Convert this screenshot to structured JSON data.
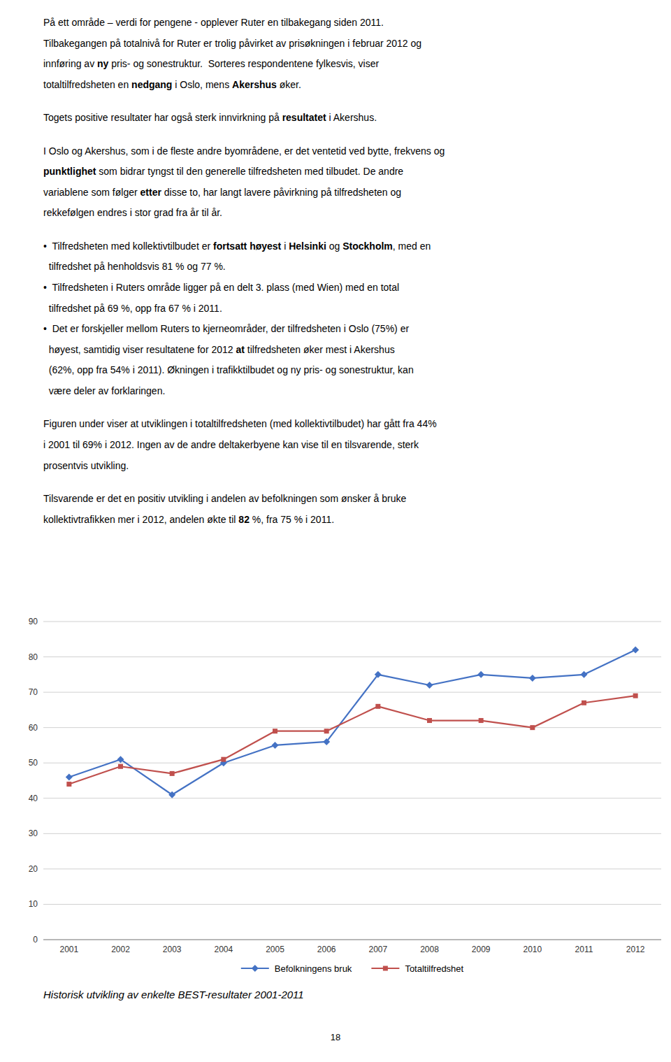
{
  "chart_data": {
    "type": "line",
    "caption": "Historisk utvikling av enkelte BEST-resultater 2001-2011",
    "x": [
      2001,
      2002,
      2003,
      2004,
      2005,
      2006,
      2007,
      2008,
      2009,
      2010,
      2011,
      2012
    ],
    "series": [
      {
        "name": "Befolkningens bruk",
        "color": "#4472C4",
        "marker": "diamond",
        "values": [
          46,
          51,
          41,
          50,
          55,
          56,
          75,
          72,
          75,
          74,
          75,
          82
        ]
      },
      {
        "name": "Totaltilfredshet",
        "color": "#C0504D",
        "marker": "square",
        "values": [
          44,
          49,
          47,
          51,
          59,
          59,
          66,
          62,
          62,
          60,
          67,
          69
        ]
      }
    ],
    "xlim": [
      2000.5,
      2012.5
    ],
    "xticks": [
      2001,
      2002,
      2003,
      2004,
      2005,
      2006,
      2007,
      2008,
      2009,
      2010,
      2011,
      2012
    ],
    "ylim": [
      0,
      90
    ],
    "yticks": [
      0,
      10,
      20,
      30,
      40,
      50,
      60,
      70,
      80,
      90
    ],
    "grid": true,
    "legend": "bottom"
  },
  "page_number": "18",
  "body": [
    [
      {
        "text": "På ett område – verdi for pengene - opplever Ruter en tilbakegang siden 2011.",
        "bold": false
      }
    ],
    [
      {
        "text": "Tilbakegangen på totalnivå for Ruter er trolig påvirket av prisøkningen i februar 2012 og",
        "bold": false
      }
    ],
    [
      {
        "text": "innføring av ",
        "bold": false
      },
      {
        "text": "ny",
        "bold": true
      },
      {
        "text": " pris- og sonestruktur.  Sorteres respondentene fylkesvis, viser",
        "bold": false
      }
    ],
    [
      {
        "text": "totaltilfredsheten en ",
        "bold": false
      },
      {
        "text": "nedgang",
        "bold": true
      },
      {
        "text": " i Oslo, mens ",
        "bold": false
      },
      {
        "text": "Akershus",
        "bold": true
      },
      {
        "text": " øker.",
        "bold": false
      }
    ],
    null,
    [
      {
        "text": "Togets positive resultater har også sterk innvirkning på ",
        "bold": false
      },
      {
        "text": "resultatet",
        "bold": true
      },
      {
        "text": " i Akershus.",
        "bold": false
      }
    ],
    null,
    [
      {
        "text": "I Oslo og Akershus, som i de fleste andre byområdene, er det ventetid ved bytte, frekvens og",
        "bold": false
      }
    ],
    [
      {
        "text": "punktlighet",
        "bold": true
      },
      {
        "text": " som bidrar tyngst til den generelle tilfredsheten med tilbudet. De andre",
        "bold": false
      }
    ],
    [
      {
        "text": "variablene som følger ",
        "bold": false
      },
      {
        "text": "etter",
        "bold": true
      },
      {
        "text": " disse to, har langt lavere påvirkning på tilfredsheten og",
        "bold": false
      }
    ],
    [
      {
        "text": "rekkefølgen endres i stor grad fra år til år.",
        "bold": false
      }
    ],
    null,
    [
      {
        "text": "•",
        "bold": false
      },
      {
        "text": "  Tilfredsheten med kollektivtilbudet er ",
        "bold": false
      },
      {
        "text": "fortsatt høyest",
        "bold": true
      },
      {
        "text": " i ",
        "bold": false
      },
      {
        "text": "Helsinki",
        "bold": true
      },
      {
        "text": " og ",
        "bold": false
      },
      {
        "text": "Stockholm",
        "bold": true
      },
      {
        "text": ", med en",
        "bold": false
      }
    ],
    [
      {
        "text": "  tilfredshet på henholdsvis 81 % og 77 %.",
        "bold": false
      }
    ],
    [
      {
        "text": "•",
        "bold": false
      },
      {
        "text": "  Tilfredsheten i Ruters område ligger på en delt 3. plass (med Wien) med en total",
        "bold": false
      }
    ],
    [
      {
        "text": "  tilfredshet på 69 %, opp fra 67 % i 2011.",
        "bold": false
      }
    ],
    [
      {
        "text": "•",
        "bold": false
      },
      {
        "text": "  Det er forskjeller mellom Ruters to kjerneområder, der tilfredsheten i Oslo (75%) er",
        "bold": false
      }
    ],
    [
      {
        "text": "  høyest, samtidig viser resultatene for 2012 ",
        "bold": false
      },
      {
        "text": "at",
        "bold": true
      },
      {
        "text": " tilfredsheten øker mest i Akershus",
        "bold": false
      }
    ],
    [
      {
        "text": "  (62%, opp fra 54% i 2011). Økningen i trafikktilbudet og ny pris- og sonestruktur, kan",
        "bold": false
      }
    ],
    [
      {
        "text": "  være deler av forklaringen.",
        "bold": false
      }
    ],
    null,
    [
      {
        "text": "Figuren under viser at utviklingen i totaltilfredsheten (med kollektivtilbudet) har gått fra 44%",
        "bold": false
      }
    ],
    [
      {
        "text": "i 2001 til 69% i 2012. Ingen av de andre deltakerbyene kan vise til en tilsvarende, sterk",
        "bold": false
      }
    ],
    [
      {
        "text": "prosentvis utvikling.",
        "bold": false
      }
    ],
    null,
    [
      {
        "text": "Tilsvarende er det en positiv utvikling i andelen av befolkningen som ønsker å bruke",
        "bold": false
      }
    ],
    [
      {
        "text": "kollektivtrafikken mer i 2012, andelen økte til ",
        "bold": false
      },
      {
        "text": "82",
        "bold": true
      },
      {
        "text": " %, fra 75 % i 2011.",
        "bold": false
      }
    ]
  ]
}
